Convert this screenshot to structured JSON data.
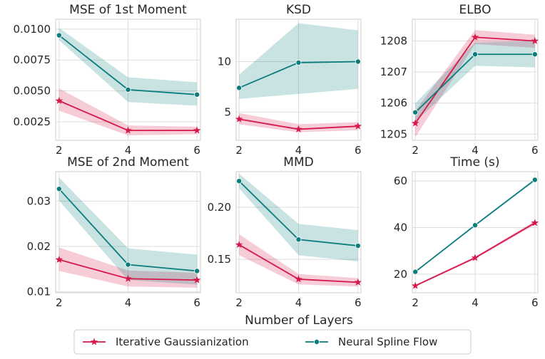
{
  "figure": {
    "xlabel": "Number of Layers",
    "legend": {
      "placement": "bottom-center",
      "entries": [
        {
          "label": "Iterative Gaussianization",
          "color": "#d6184a",
          "marker": "star"
        },
        {
          "label": "Neural Spline Flow",
          "color": "#0b7d7d",
          "marker": "circle"
        }
      ]
    }
  },
  "chart_data": [
    {
      "type": "line",
      "title": "MSE of 1st Moment",
      "x": [
        2,
        4,
        6
      ],
      "xlim": [
        1.9,
        6.1
      ],
      "xticks": [
        2,
        4,
        6
      ],
      "ylim": [
        0.001,
        0.0108
      ],
      "yticks": [
        0.0025,
        0.005,
        0.0075,
        0.01
      ],
      "yticklabels": [
        "0.0025",
        "0.0050",
        "0.0075",
        "0.0100"
      ],
      "grid": true,
      "series": [
        {
          "name": "Iterative Gaussianization",
          "values": [
            0.0042,
            0.0018,
            0.0018
          ],
          "lower": [
            0.0034,
            0.0014,
            0.0015
          ],
          "upper": [
            0.0052,
            0.0022,
            0.0021
          ]
        },
        {
          "name": "Neural Spline Flow",
          "values": [
            0.0095,
            0.0051,
            0.0047
          ],
          "lower": [
            0.0091,
            0.0041,
            0.0038
          ],
          "upper": [
            0.0101,
            0.0061,
            0.0057
          ]
        }
      ]
    },
    {
      "type": "line",
      "title": "KSD",
      "x": [
        2,
        4,
        6
      ],
      "xlim": [
        1.9,
        6.1
      ],
      "xticks": [
        2,
        4,
        6
      ],
      "ylim": [
        2.2,
        14.2
      ],
      "yticks": [
        5,
        10
      ],
      "yticklabels": [
        "5",
        "10"
      ],
      "grid": true,
      "series": [
        {
          "name": "Iterative Gaussianization",
          "values": [
            4.3,
            3.3,
            3.6
          ],
          "lower": [
            3.8,
            3.0,
            3.2
          ],
          "upper": [
            4.9,
            3.8,
            4.0
          ]
        },
        {
          "name": "Neural Spline Flow",
          "values": [
            7.4,
            9.9,
            10.0
          ],
          "lower": [
            6.3,
            6.8,
            7.3
          ],
          "upper": [
            8.7,
            13.8,
            13.1
          ]
        }
      ]
    },
    {
      "type": "line",
      "title": "ELBO",
      "x": [
        2,
        4,
        6
      ],
      "xlim": [
        1.9,
        6.1
      ],
      "xticks": [
        2,
        4,
        6
      ],
      "ylim": [
        1204.8,
        1208.7
      ],
      "yticks": [
        1205,
        1206,
        1207,
        1208
      ],
      "yticklabels": [
        "1205",
        "1206",
        "1207",
        "1208"
      ],
      "grid": true,
      "series": [
        {
          "name": "Iterative Gaussianization",
          "values": [
            1205.35,
            1208.12,
            1208.0
          ],
          "lower": [
            1204.9,
            1207.9,
            1207.78
          ],
          "upper": [
            1205.75,
            1208.35,
            1208.2
          ]
        },
        {
          "name": "Neural Spline Flow",
          "values": [
            1205.7,
            1207.57,
            1207.57
          ],
          "lower": [
            1205.4,
            1207.2,
            1207.15
          ],
          "upper": [
            1206.0,
            1207.95,
            1208.0
          ]
        }
      ]
    },
    {
      "type": "line",
      "title": "MSE of 2nd Moment",
      "x": [
        2,
        4,
        6
      ],
      "xlim": [
        1.9,
        6.1
      ],
      "xticks": [
        2,
        4,
        6
      ],
      "ylim": [
        0.0098,
        0.0365
      ],
      "yticks": [
        0.01,
        0.02,
        0.03
      ],
      "yticklabels": [
        "0.01",
        "0.02",
        "0.03"
      ],
      "grid": true,
      "series": [
        {
          "name": "Iterative Gaussianization",
          "values": [
            0.0171,
            0.0129,
            0.0126
          ],
          "lower": [
            0.0146,
            0.0112,
            0.0109
          ],
          "upper": [
            0.0198,
            0.0147,
            0.0142
          ]
        },
        {
          "name": "Neural Spline Flow",
          "values": [
            0.0327,
            0.016,
            0.0146
          ],
          "lower": [
            0.0301,
            0.0126,
            0.0116
          ],
          "upper": [
            0.0352,
            0.0196,
            0.0182
          ]
        }
      ]
    },
    {
      "type": "line",
      "title": "MMD",
      "x": [
        2,
        4,
        6
      ],
      "xlim": [
        1.9,
        6.1
      ],
      "xticks": [
        2,
        4,
        6
      ],
      "ylim": [
        0.118,
        0.234
      ],
      "yticks": [
        0.15,
        0.2
      ],
      "yticklabels": [
        "0.15",
        "0.20"
      ],
      "grid": true,
      "series": [
        {
          "name": "Iterative Gaussianization",
          "values": [
            0.164,
            0.131,
            0.128
          ],
          "lower": [
            0.154,
            0.126,
            0.124
          ],
          "upper": [
            0.174,
            0.136,
            0.132
          ]
        },
        {
          "name": "Neural Spline Flow",
          "values": [
            0.225,
            0.169,
            0.163
          ],
          "lower": [
            0.218,
            0.154,
            0.148
          ],
          "upper": [
            0.232,
            0.184,
            0.178
          ]
        }
      ]
    },
    {
      "type": "line",
      "title": "Time (s)",
      "x": [
        2,
        4,
        6
      ],
      "xlim": [
        1.9,
        6.1
      ],
      "xticks": [
        2,
        4,
        6
      ],
      "ylim": [
        12,
        64
      ],
      "yticks": [
        20,
        40,
        60
      ],
      "yticklabels": [
        "20",
        "40",
        "60"
      ],
      "grid": true,
      "series": [
        {
          "name": "Iterative Gaussianization",
          "values": [
            15,
            27,
            42
          ],
          "lower": [
            14.6,
            26.5,
            41.2
          ],
          "upper": [
            15.4,
            27.5,
            42.8
          ]
        },
        {
          "name": "Neural Spline Flow",
          "values": [
            21,
            41,
            60.5
          ],
          "lower": [
            20.7,
            40.6,
            60.0
          ],
          "upper": [
            21.3,
            41.4,
            61.0
          ]
        }
      ]
    }
  ]
}
